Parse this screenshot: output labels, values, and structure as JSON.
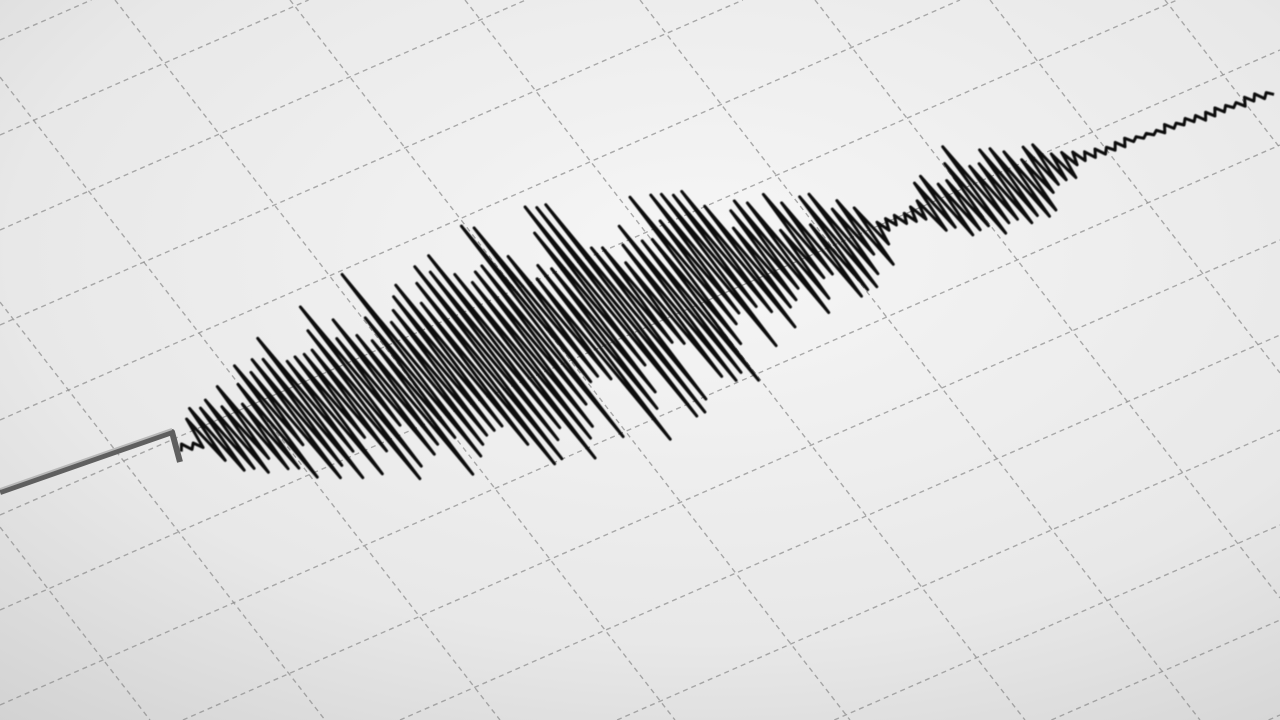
{
  "scene": {
    "subject": "seismograph-trace",
    "colors": {
      "paper_light": "#f4f4f4",
      "paper_dark": "#d4d4d4",
      "grid": "#8a8a8a",
      "trace": "#111111",
      "stylus": "#6f6f6f"
    }
  }
}
